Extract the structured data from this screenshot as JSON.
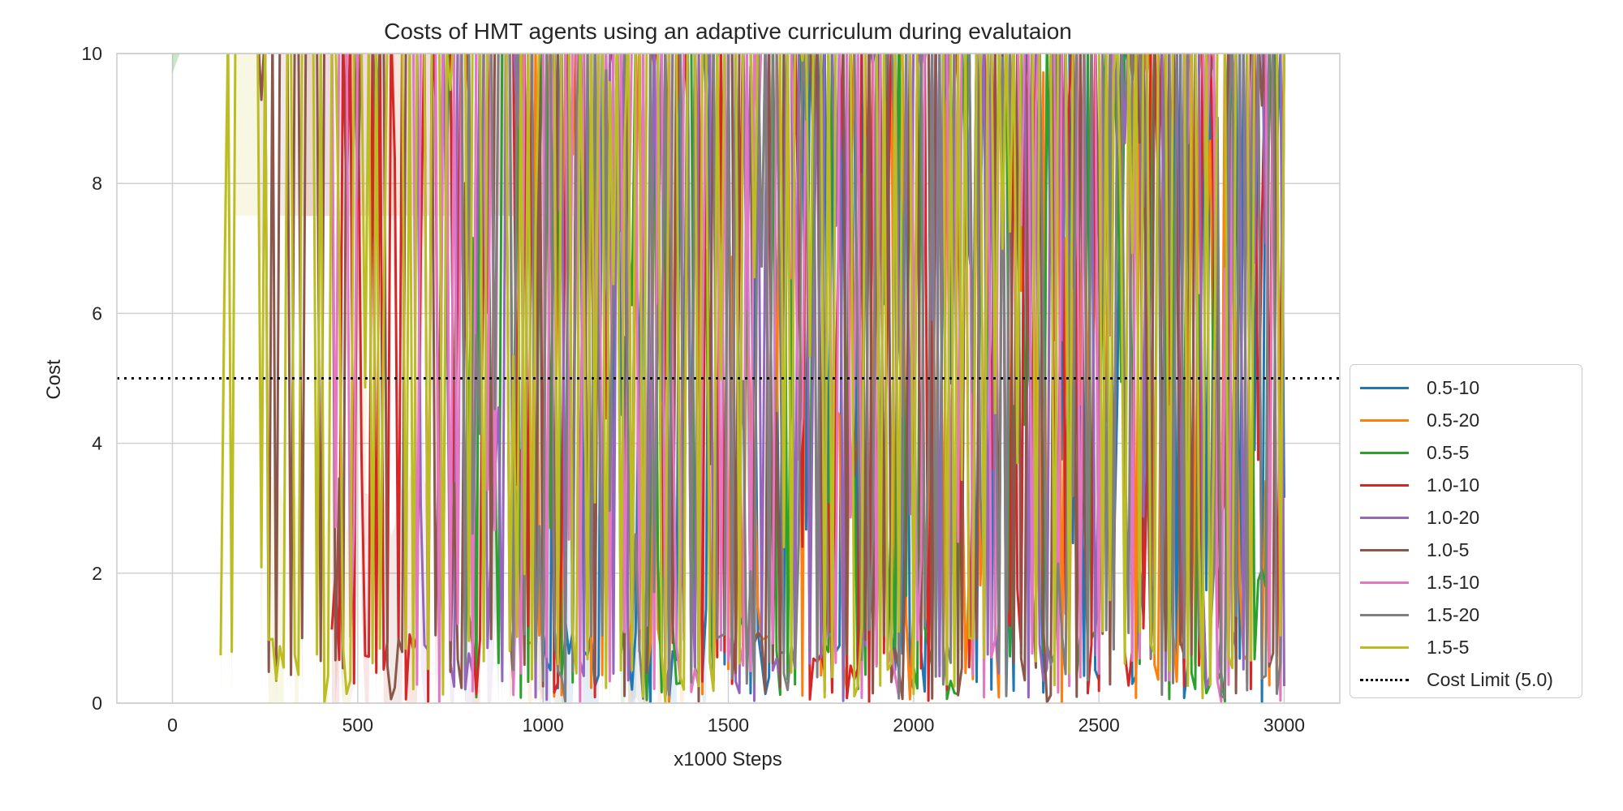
{
  "chart_data": {
    "type": "line",
    "title": "Costs of HMT agents using an adaptive curriculum during evalutaion",
    "xlabel": "x1000 Steps",
    "ylabel": "Cost",
    "xlim": [
      -150,
      3150
    ],
    "ylim": [
      0,
      10
    ],
    "xticks": [
      0,
      500,
      1000,
      1500,
      2000,
      2500,
      3000
    ],
    "yticks": [
      0,
      2,
      4,
      6,
      8,
      10
    ],
    "grid": true,
    "legend_position": "outside right, lower",
    "series": [
      {
        "name": "0.5-10",
        "color": "#1f77b4",
        "start": 1000,
        "density": 0.45,
        "shaded": true
      },
      {
        "name": "0.5-20",
        "color": "#ff7f0e",
        "start": 900,
        "density": 0.4,
        "shaded": true
      },
      {
        "name": "0.5-5",
        "color": "#2ca02c",
        "start": 720,
        "density": 0.45,
        "shaded": true
      },
      {
        "name": "1.0-10",
        "color": "#d62728",
        "start": 430,
        "density": 0.55,
        "shaded": true
      },
      {
        "name": "1.0-20",
        "color": "#9467bd",
        "start": 650,
        "density": 0.55,
        "shaded": true
      },
      {
        "name": "1.0-5",
        "color": "#8c564b",
        "start": 230,
        "density": 0.55,
        "shaded": true
      },
      {
        "name": "1.5-10",
        "color": "#e377c2",
        "start": 350,
        "density": 0.6,
        "shaded": true
      },
      {
        "name": "1.5-20",
        "color": "#7f7f7f",
        "start": 780,
        "density": 0.55,
        "shaded": true
      },
      {
        "name": "1.5-5",
        "color": "#bcbd22",
        "start": 130,
        "density": 0.6,
        "shaded": true
      }
    ],
    "reference_line": {
      "name": "Cost Limit (5.0)",
      "y": 5.0,
      "style": "dotted",
      "color": "#000000"
    }
  }
}
